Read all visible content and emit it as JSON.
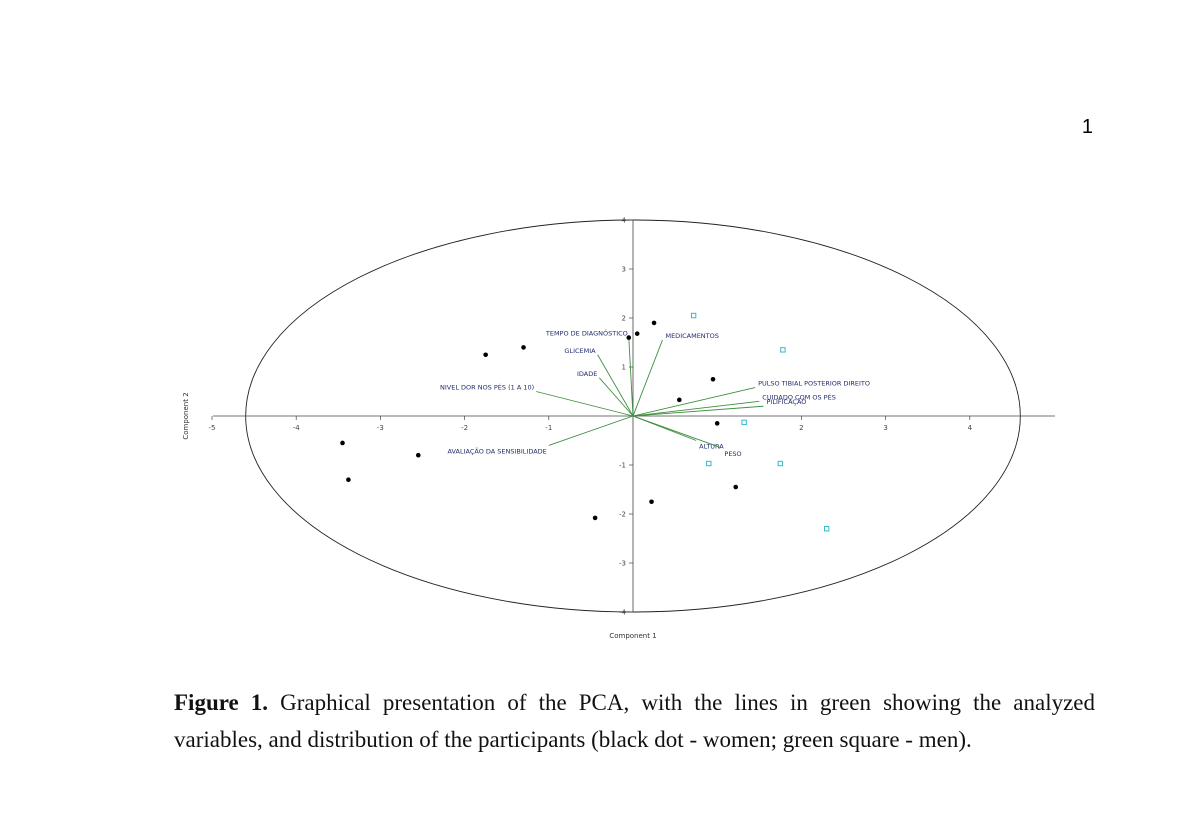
{
  "page_number": "1",
  "caption": {
    "label": "Figure 1.",
    "text": " Graphical presentation of the PCA, with the lines in green showing the analyzed variables, and distribution of the participants (black dot - women; green square - men)."
  },
  "colors": {
    "loading_line": "#3f8f3f",
    "women_point": "#000000",
    "men_point": "#38b8c8",
    "variable_label": "#1f2a6b",
    "axis": "#444444"
  },
  "chart_data": {
    "type": "scatter",
    "xlabel": "Component 1",
    "ylabel": "Component 2",
    "xlim": [
      -5,
      5
    ],
    "ylim": [
      -4,
      4
    ],
    "x_ticks": [
      -5,
      -4,
      -3,
      -2,
      -1,
      2,
      3,
      4
    ],
    "y_ticks": [
      -4,
      -3,
      -2,
      -1,
      1,
      2,
      3,
      4
    ],
    "x_tick_labels": [
      "-5",
      "-4",
      "-3",
      "-2",
      "-1",
      "2",
      "3",
      "4"
    ],
    "y_tick_labels": [
      "-4",
      "-3",
      "-2",
      "-1",
      "1",
      "2",
      "3",
      "4"
    ],
    "grid": false,
    "confidence_ellipse": {
      "center": [
        0,
        0
      ],
      "semi_axis_x": 4.6,
      "semi_axis_y": 4.0
    },
    "series": [
      {
        "points": [
          [
            -3.45,
            -0.55
          ],
          [
            -3.38,
            -1.3
          ],
          [
            -2.55,
            -0.8
          ],
          [
            -1.75,
            1.25
          ],
          [
            -1.3,
            1.4
          ],
          [
            -0.45,
            -2.08
          ],
          [
            -0.05,
            1.6
          ],
          [
            0.05,
            1.68
          ],
          [
            0.25,
            1.9
          ],
          [
            0.22,
            -1.75
          ],
          [
            0.55,
            0.33
          ],
          [
            0.95,
            0.75
          ],
          [
            1.0,
            -0.15
          ],
          [
            1.22,
            -1.45
          ]
        ]
      },
      {
        "points": [
          [
            0.72,
            2.05
          ],
          [
            0.9,
            -0.97
          ],
          [
            1.32,
            -0.13
          ],
          [
            1.75,
            -0.97
          ],
          [
            1.78,
            1.35
          ],
          [
            2.3,
            -2.3
          ]
        ]
      }
    ],
    "loadings": [
      {
        "label": "TEMPO DE DIAGNÓSTICO",
        "x": -0.05,
        "y": 1.6
      },
      {
        "label": "GLICEMIA",
        "x": -0.42,
        "y": 1.25
      },
      {
        "label": "IDADE",
        "x": -0.4,
        "y": 0.78
      },
      {
        "label": "NIVEL DOR NOS PÉS (1 A 10)",
        "x": -1.15,
        "y": 0.5
      },
      {
        "label": "AVALIAÇÃO  DA SENSIBILIDADE",
        "x": -1.0,
        "y": -0.6
      },
      {
        "label": "MEDICAMENTOS",
        "x": 0.35,
        "y": 1.55
      },
      {
        "label": "PULSO TIBIAL POSTERIOR DIREITO",
        "x": 1.45,
        "y": 0.58
      },
      {
        "label": "CUIDADO COM OS PÉS",
        "x": 1.5,
        "y": 0.3
      },
      {
        "label": "PILIFICAÇÃO",
        "x": 1.55,
        "y": 0.2
      },
      {
        "label": "ALTURA",
        "x": 0.75,
        "y": -0.5
      },
      {
        "label": "PESO",
        "x": 1.05,
        "y": -0.65
      }
    ]
  }
}
